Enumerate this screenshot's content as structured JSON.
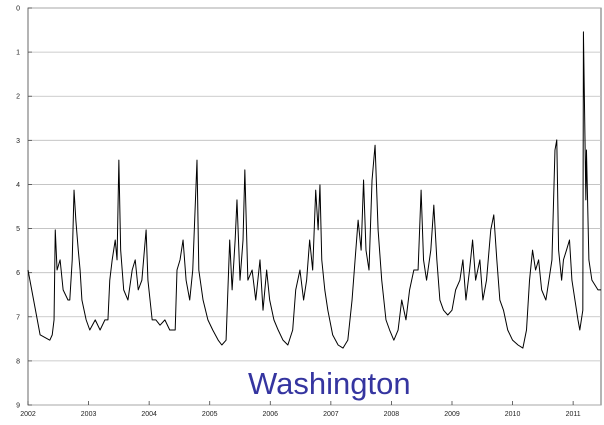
{
  "chart_data": {
    "type": "line",
    "annotation": "Washington",
    "x": [
      2002.0,
      2002.2,
      2002.36,
      2002.4,
      2002.43,
      2002.45,
      2002.48,
      2002.53,
      2002.58,
      2002.66,
      2002.69,
      2002.73,
      2002.76,
      2002.79,
      2002.83,
      2002.86,
      2002.89,
      2002.96,
      2003.02,
      2003.11,
      2003.19,
      2003.27,
      2003.32,
      2003.35,
      2003.39,
      2003.44,
      2003.47,
      2003.5,
      2003.53,
      2003.58,
      2003.65,
      2003.72,
      2003.77,
      2003.82,
      2003.88,
      2003.95,
      2003.98,
      2004.05,
      2004.11,
      2004.18,
      2004.26,
      2004.34,
      2004.43,
      2004.46,
      2004.51,
      2004.56,
      2004.61,
      2004.67,
      2004.72,
      2004.79,
      2004.82,
      2004.89,
      2004.97,
      2005.05,
      2005.14,
      2005.2,
      2005.27,
      2005.33,
      2005.37,
      2005.42,
      2005.45,
      2005.5,
      2005.55,
      2005.58,
      2005.63,
      2005.7,
      2005.76,
      2005.83,
      2005.88,
      2005.94,
      2005.99,
      2006.06,
      2006.13,
      2006.21,
      2006.29,
      2006.37,
      2006.42,
      2006.49,
      2006.55,
      2006.6,
      2006.65,
      2006.7,
      2006.75,
      2006.79,
      2006.82,
      2006.85,
      2006.9,
      2006.95,
      2007.03,
      2007.12,
      2007.2,
      2007.28,
      2007.35,
      2007.4,
      2007.45,
      2007.5,
      2007.54,
      2007.58,
      2007.63,
      2007.68,
      2007.73,
      2007.78,
      2007.84,
      2007.91,
      2007.97,
      2008.04,
      2008.11,
      2008.17,
      2008.24,
      2008.3,
      2008.37,
      2008.44,
      2008.49,
      2008.53,
      2008.58,
      2008.65,
      2008.7,
      2008.75,
      2008.8,
      2008.86,
      2008.93,
      2009.0,
      2009.06,
      2009.13,
      2009.18,
      2009.23,
      2009.29,
      2009.34,
      2009.39,
      2009.46,
      2009.51,
      2009.57,
      2009.64,
      2009.69,
      2009.74,
      2009.79,
      2009.85,
      2009.92,
      2010.0,
      2010.09,
      2010.17,
      2010.23,
      2010.28,
      2010.33,
      2010.38,
      2010.43,
      2010.48,
      2010.55,
      2010.6,
      2010.65,
      2010.7,
      2010.73,
      2010.76,
      2010.81,
      2010.84,
      2010.89,
      2010.94,
      2010.98,
      2011.03,
      2011.08,
      2011.11,
      2011.16,
      2011.17,
      2011.21,
      2011.22,
      2011.26,
      2011.31,
      2011.36,
      2011.41,
      2011.46
    ],
    "series": [
      {
        "color": "#000000",
        "values": [
          5.94,
          7.41,
          7.53,
          7.41,
          7.07,
          5.03,
          5.94,
          5.71,
          6.39,
          6.62,
          6.62,
          5.71,
          4.13,
          4.81,
          5.49,
          5.94,
          6.62,
          7.07,
          7.3,
          7.07,
          7.3,
          7.07,
          7.07,
          6.17,
          5.71,
          5.26,
          5.71,
          3.45,
          5.49,
          6.39,
          6.62,
          5.94,
          5.71,
          6.39,
          6.17,
          5.03,
          6.17,
          7.07,
          7.07,
          7.19,
          7.07,
          7.3,
          7.3,
          5.94,
          5.71,
          5.26,
          6.17,
          6.62,
          5.94,
          3.45,
          5.94,
          6.62,
          7.07,
          7.3,
          7.53,
          7.64,
          7.53,
          5.26,
          6.39,
          5.26,
          4.35,
          6.17,
          5.26,
          3.67,
          6.17,
          5.94,
          6.62,
          5.71,
          6.85,
          5.94,
          6.62,
          7.07,
          7.3,
          7.53,
          7.64,
          7.3,
          6.39,
          5.94,
          6.62,
          6.17,
          5.26,
          5.94,
          4.13,
          5.03,
          4.01,
          5.71,
          6.39,
          6.85,
          7.41,
          7.64,
          7.71,
          7.53,
          6.62,
          5.71,
          4.81,
          5.49,
          3.9,
          5.49,
          5.94,
          3.9,
          3.11,
          5.03,
          6.17,
          7.07,
          7.3,
          7.53,
          7.3,
          6.62,
          7.07,
          6.39,
          5.94,
          5.94,
          4.13,
          5.71,
          6.17,
          5.49,
          4.47,
          5.71,
          6.62,
          6.85,
          6.96,
          6.85,
          6.39,
          6.17,
          5.71,
          6.62,
          5.94,
          5.26,
          6.17,
          5.71,
          6.62,
          6.17,
          5.03,
          4.69,
          5.71,
          6.62,
          6.85,
          7.3,
          7.53,
          7.64,
          7.71,
          7.3,
          6.17,
          5.49,
          5.94,
          5.71,
          6.39,
          6.62,
          6.17,
          5.71,
          3.22,
          2.99,
          5.49,
          6.17,
          5.71,
          5.49,
          5.26,
          6.17,
          6.62,
          7.07,
          7.3,
          6.85,
          0.54,
          4.35,
          3.22,
          5.71,
          6.17,
          6.28,
          6.39,
          6.39
        ]
      }
    ],
    "xlim": [
      2002,
      2011.46
    ],
    "ylim": [
      0,
      9
    ],
    "y_inverted": true,
    "xticks": [
      2002,
      2003,
      2004,
      2005,
      2006,
      2007,
      2008,
      2009,
      2010,
      2011
    ],
    "yticks": [
      0,
      1,
      2,
      3,
      4,
      5,
      6,
      7,
      8,
      9
    ],
    "grid": true
  }
}
